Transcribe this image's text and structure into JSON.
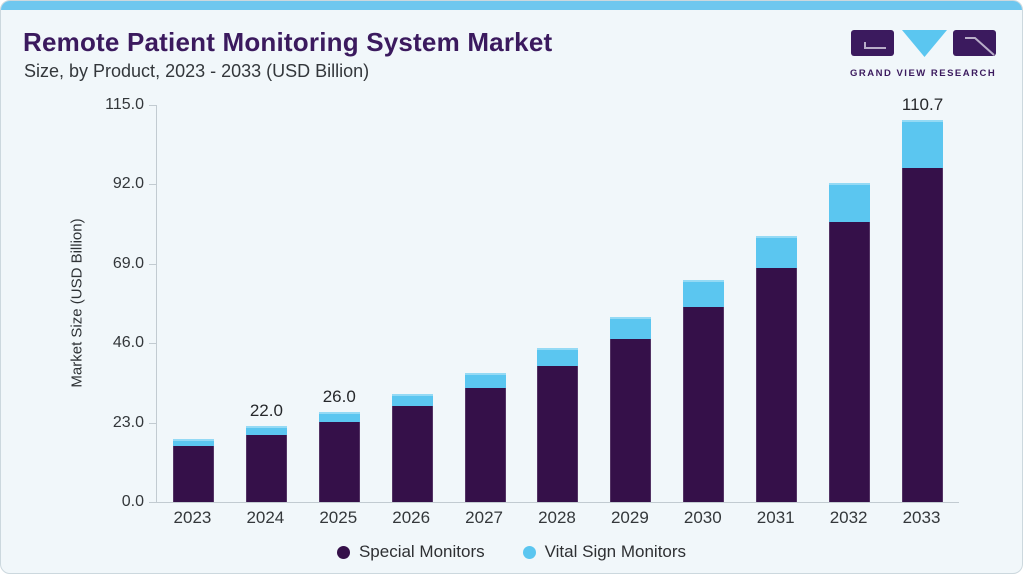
{
  "header": {
    "title": "Remote Patient Monitoring System Market",
    "subtitle": "Size, by Product, 2023 - 2033 (USD Billion)"
  },
  "logo": {
    "name": "Grand View Research",
    "text": "GRAND VIEW RESEARCH"
  },
  "colors": {
    "special_monitors": "#351049",
    "vital_sign_monitors": "#5bc6f0",
    "accent_strip": "#6ec7ef",
    "card_background": "#f1f7fa",
    "title_purple": "#3b1a5e",
    "axis_gray": "#c2cbd1"
  },
  "chart_data": {
    "type": "bar",
    "stacked": true,
    "title": "Remote Patient Monitoring System Market Size, by Product, 2023 - 2033 (USD Billion)",
    "xlabel": "",
    "ylabel": "Market Size (USD Billion)",
    "ylim": [
      0,
      115
    ],
    "grid": false,
    "legend_position": "bottom",
    "yticks": [
      115,
      92,
      69,
      46,
      23,
      0
    ],
    "ytick_labels": [
      "115.0",
      "92.0",
      "69.0",
      "46.0",
      "23.0",
      "0.0"
    ],
    "categories": [
      "2023",
      "2024",
      "2025",
      "2026",
      "2027",
      "2028",
      "2029",
      "2030",
      "2031",
      "2032",
      "2033"
    ],
    "series": [
      {
        "name": "Special Monitors",
        "color": "#351049",
        "values": [
          16.2,
          19.5,
          23.1,
          27.7,
          33.1,
          39.5,
          47.2,
          56.5,
          67.7,
          81.0,
          96.9
        ]
      },
      {
        "name": "Vital Sign Monitors",
        "color": "#5bc6f0",
        "values": [
          2.1,
          2.5,
          2.9,
          3.5,
          4.2,
          5.2,
          6.4,
          7.7,
          9.3,
          11.3,
          13.8
        ]
      }
    ],
    "totals": [
      18.3,
      22.0,
      26.0,
      31.2,
      37.3,
      44.7,
      53.6,
      64.2,
      77.0,
      92.3,
      110.7
    ],
    "bar_labels": [
      "",
      "22.0",
      "26.0",
      "",
      "",
      "",
      "",
      "",
      "",
      "",
      "110.7"
    ]
  }
}
